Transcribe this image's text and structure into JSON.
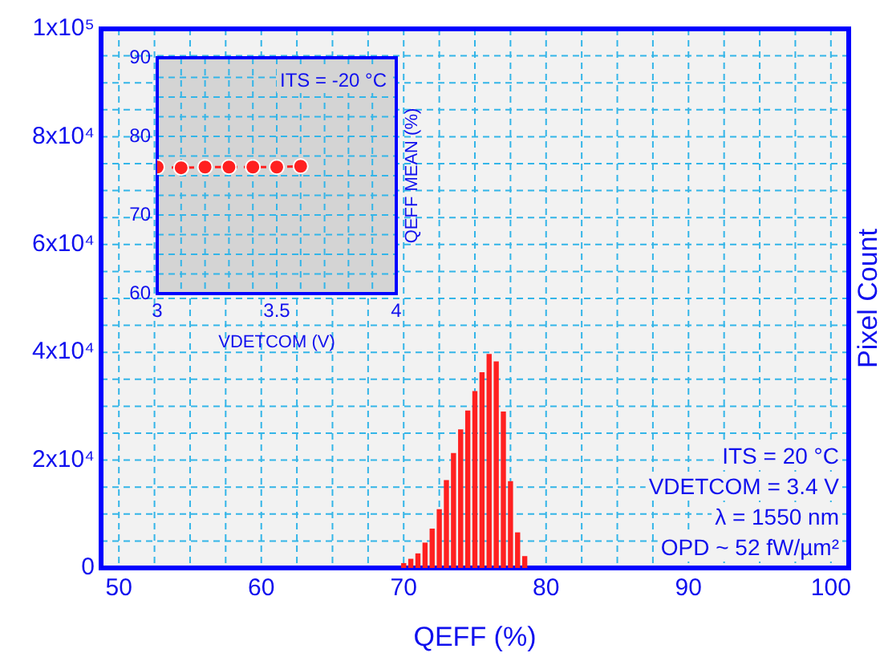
{
  "chart_data": [
    {
      "type": "histogram",
      "xlabel": "QEFF (%)",
      "ylabel": "Pixel Count",
      "color": "#ff2020",
      "bins": [
        69.75,
        70.25,
        70.75,
        71.25,
        71.75,
        72.25,
        72.75,
        73.25,
        73.75,
        74.25,
        74.75,
        75.25,
        75.75,
        76.25,
        76.75,
        77.25,
        77.75,
        78.25,
        78.75
      ],
      "values": [
        900,
        1700,
        2700,
        4700,
        7300,
        10900,
        16300,
        21300,
        25700,
        29200,
        32800,
        36300,
        39700,
        38300,
        29000,
        16100,
        6600,
        2200
      ],
      "xlim": [
        50,
        100
      ],
      "ylim": [
        0,
        100000
      ],
      "xticks": [
        50,
        {
          "value": 52.5,
          "label": null
        },
        {
          "value": 55,
          "label": null
        },
        {
          "value": 57.5,
          "label": null
        },
        60,
        {
          "value": 62.5,
          "label": null
        },
        {
          "value": 65,
          "label": null
        },
        {
          "value": 67.5,
          "label": null
        },
        70,
        {
          "value": 72.5,
          "label": null
        },
        {
          "value": 75,
          "label": null
        },
        {
          "value": 77.5,
          "label": null
        },
        80,
        {
          "value": 82.5,
          "label": null
        },
        {
          "value": 85,
          "label": null
        },
        {
          "value": 87.5,
          "label": null
        },
        90,
        {
          "value": 92.5,
          "label": null
        },
        {
          "value": 95,
          "label": null
        },
        {
          "value": 97.5,
          "label": null
        },
        100
      ],
      "yticks": [
        0,
        {
          "value": 5000,
          "label": null
        },
        {
          "value": 10000,
          "label": null
        },
        {
          "value": 15000,
          "label": null
        },
        {
          "value": 20000,
          "label": "2x10⁴"
        },
        {
          "value": 25000,
          "label": null
        },
        {
          "value": 30000,
          "label": null
        },
        {
          "value": 35000,
          "label": null
        },
        {
          "value": 40000,
          "label": "4x10⁴"
        },
        {
          "value": 45000,
          "label": null
        },
        {
          "value": 50000,
          "label": null
        },
        {
          "value": 55000,
          "label": null
        },
        {
          "value": 60000,
          "label": "6x10⁴"
        },
        {
          "value": 65000,
          "label": null
        },
        {
          "value": 70000,
          "label": null
        },
        {
          "value": 75000,
          "label": null
        },
        {
          "value": 80000,
          "label": "8x10⁴"
        },
        {
          "value": 85000,
          "label": null
        },
        {
          "value": 90000,
          "label": null
        },
        {
          "value": 95000,
          "label": null
        },
        {
          "value": 100000,
          "label": "1x10⁵"
        }
      ],
      "grid": true,
      "annotations": [
        "ITS = 20 °C",
        "VDETCOM = 3.4 V",
        "λ = 1550 nm",
        "OPD ~ 52 fW/µm²"
      ]
    },
    {
      "type": "line",
      "xlabel": "VDETCOM (V)",
      "ylabel": "QEFF MEAN (%)",
      "color": "#ff2020",
      "marker": "circle",
      "line_style": "dashed",
      "x": [
        3.0,
        3.1,
        3.2,
        3.3,
        3.4,
        3.5,
        3.6
      ],
      "values": [
        76.1,
        76,
        76.1,
        76.1,
        76.1,
        76.1,
        76.2
      ],
      "xlim": [
        3,
        4
      ],
      "ylim": [
        60,
        90
      ],
      "xticks": [
        3,
        {
          "value": 3.1,
          "label": null
        },
        {
          "value": 3.2,
          "label": null
        },
        {
          "value": 3.3,
          "label": null
        },
        {
          "value": 3.4,
          "label": null
        },
        3.5,
        {
          "value": 3.6,
          "label": null
        },
        {
          "value": 3.7,
          "label": null
        },
        {
          "value": 3.8,
          "label": null
        },
        {
          "value": 3.9,
          "label": null
        },
        4
      ],
      "yticks": [
        60,
        {
          "value": 62.5,
          "label": null
        },
        {
          "value": 65,
          "label": null
        },
        {
          "value": 67.5,
          "label": null
        },
        70,
        {
          "value": 72.5,
          "label": null
        },
        {
          "value": 75,
          "label": null
        },
        {
          "value": 77.5,
          "label": null
        },
        80,
        {
          "value": 82.5,
          "label": null
        },
        {
          "value": 85,
          "label": null
        },
        {
          "value": 87.5,
          "label": null
        },
        90
      ],
      "grid": true,
      "annotations": [
        "ITS = -20 °C"
      ]
    }
  ]
}
